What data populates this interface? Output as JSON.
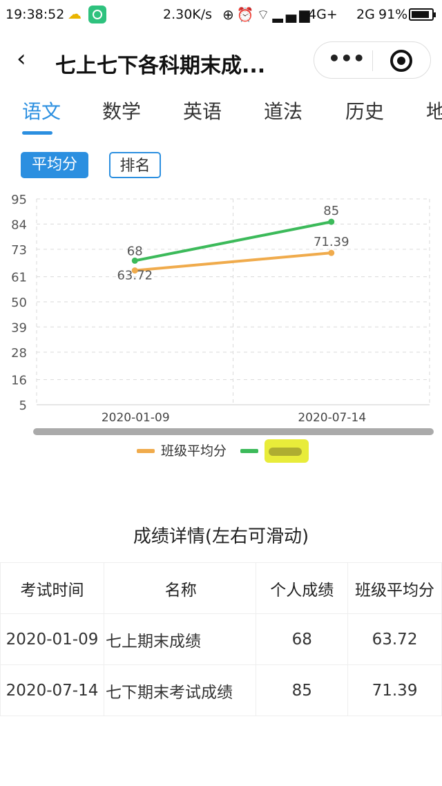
{
  "status_bar": {
    "time": "19:38:52",
    "speed": "2.30K/s",
    "network1": "4G+",
    "network2": "2G",
    "battery_percent": "91%",
    "battery_level": 0.91
  },
  "header": {
    "title": "七上七下各科期末成...",
    "more_icon": "more-dots-icon",
    "close_icon": "target-close-icon"
  },
  "tabs": [
    "语文",
    "数学",
    "英语",
    "道法",
    "历史",
    "地"
  ],
  "active_tab": 0,
  "toggles": {
    "average": "平均分",
    "rank": "排名"
  },
  "colors": {
    "accent": "#2b8fe0",
    "class_avg": "#f0ab4c",
    "personal": "#3cba5a"
  },
  "chart_data": {
    "type": "line",
    "categories": [
      "2020-01-09",
      "2020-07-14"
    ],
    "yticks": [
      95,
      84,
      73,
      61,
      50,
      39,
      28,
      16,
      5
    ],
    "ylim": [
      5,
      95
    ],
    "grid": true,
    "legend_position": "bottom",
    "series": [
      {
        "name": "班级平均分",
        "values": [
          63.72,
          71.39
        ],
        "labels": [
          "63.72",
          "71.39"
        ],
        "color": "#f0ab4c"
      },
      {
        "name": "",
        "values": [
          68,
          85
        ],
        "labels": [
          "68",
          "85"
        ],
        "color": "#3cba5a"
      }
    ]
  },
  "legend": {
    "series1": "班级平均分"
  },
  "details": {
    "title": "成绩详情(左右可滑动)",
    "headers": [
      "考试时间",
      "名称",
      "个人成绩",
      "班级平均分"
    ],
    "rows": [
      [
        "2020-01-09",
        "七上期末成绩",
        "68",
        "63.72"
      ],
      [
        "2020-07-14",
        "七下期末考试成绩",
        "85",
        "71.39"
      ]
    ]
  }
}
